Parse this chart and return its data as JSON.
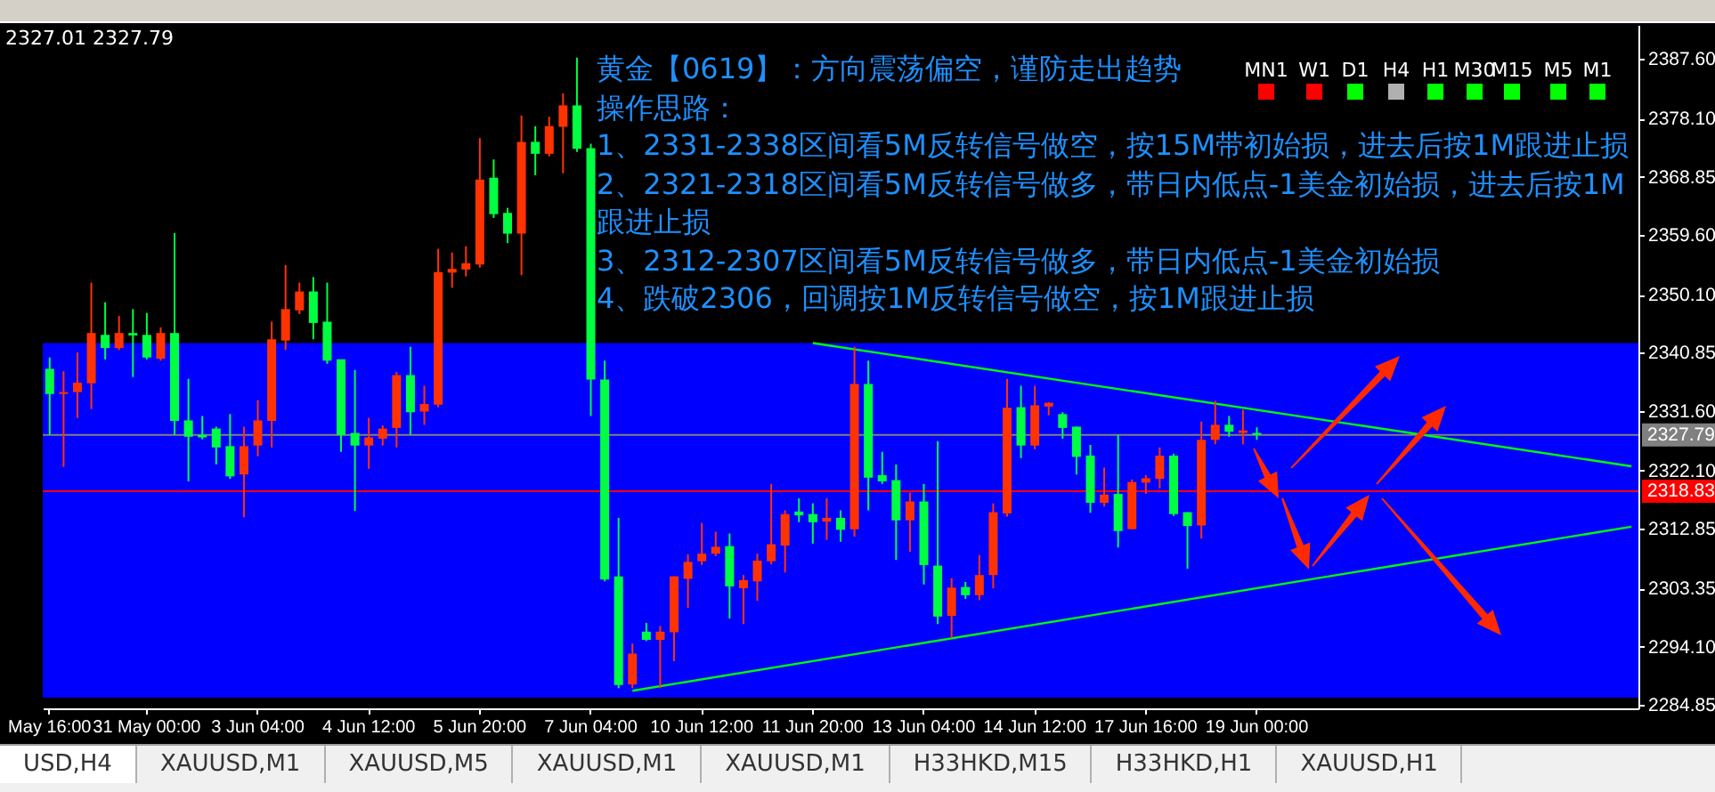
{
  "chart_data": {
    "type": "candlestick",
    "title": "黄金【0619】：方向震荡偏空，谨防走出趋势",
    "annotations": [
      "2327.01 2327.79",
      "操作思路：",
      "1、2331-2338区间看5M反转信号做空，按15M带初始损，进去后按1M跟进止损",
      "2、2321-2318区间看5M反转信号做多，带日内低点-1美金初始损，进去后按1M跟进止损",
      "3、2312-2307区间看5M反转信号做多，带日内低点-1美金初始损",
      "4、跌破2306，回调按1M反转信号做空，按1M跟进止损",
      "MN1",
      "W1",
      "D1",
      "H4",
      "H1",
      "M30",
      "M15",
      "M5",
      "M1",
      "USD,H4",
      "XAUUSD,M1",
      "XAUUSD,M5",
      "XAUUSD,M1",
      "XAUUSD,M1",
      "H33HKD,M15",
      "H33HKD,H1",
      "XAUUSD,H1"
    ],
    "categories": [
      "May 16:00",
      null,
      null,
      null,
      null,
      null,
      null,
      "31 May 00:00",
      null,
      null,
      null,
      null,
      null,
      null,
      null,
      "3 Jun 04:00",
      null,
      null,
      null,
      null,
      null,
      null,
      null,
      "4 Jun 12:00",
      null,
      null,
      null,
      null,
      null,
      null,
      null,
      "5 Jun 20:00",
      null,
      null,
      null,
      null,
      null,
      null,
      null,
      "7 Jun 04:00",
      null,
      null,
      null,
      null,
      null,
      null,
      null,
      "10 Jun 12:00",
      null,
      null,
      null,
      null,
      null,
      null,
      null,
      "11 Jun 20:00",
      null,
      null,
      null,
      null,
      null,
      null,
      null,
      "13 Jun 04:00",
      null,
      null,
      null,
      null,
      null,
      null,
      null,
      "14 Jun 12:00",
      null,
      null,
      null,
      null,
      null,
      null,
      null,
      "17 Jun 16:00",
      null,
      null,
      null,
      null,
      null,
      null,
      null,
      "19 Jun 00:00",
      null,
      null,
      null,
      null,
      null,
      null,
      null,
      null,
      null,
      null,
      null,
      null,
      null,
      null,
      null,
      null,
      null,
      null,
      null,
      null,
      null,
      null,
      null,
      null,
      null,
      null,
      null
    ],
    "ohlc": [
      [
        2338.3,
        2340.1,
        2327.8,
        2334.3
      ],
      [
        2334.3,
        2337.9,
        2322.7,
        2334.6
      ],
      [
        2334.6,
        2340.9,
        2330.5,
        2336.1
      ],
      [
        2336.0,
        2352.0,
        2331.9,
        2344.0
      ],
      [
        2343.7,
        2348.9,
        2339.8,
        2341.6
      ],
      [
        2341.6,
        2346.7,
        2341.3,
        2344.0
      ],
      [
        2344.0,
        2347.8,
        2337.0,
        2343.6
      ],
      [
        2343.7,
        2347.2,
        2339.8,
        2340.1
      ],
      [
        2339.9,
        2344.9,
        2339.6,
        2344.0
      ],
      [
        2344.0,
        2359.9,
        2327.8,
        2330.0
      ],
      [
        2330.1,
        2336.7,
        2320.4,
        2327.5
      ],
      [
        2327.8,
        2330.8,
        2327.1,
        2327.4
      ],
      [
        2328.8,
        2329.1,
        2323.1,
        2325.8
      ],
      [
        2326.0,
        2331.1,
        2320.8,
        2321.2
      ],
      [
        2321.5,
        2329.1,
        2314.7,
        2326.0
      ],
      [
        2326.1,
        2333.3,
        2324.4,
        2330.1
      ],
      [
        2330.0,
        2345.8,
        2325.8,
        2343.0
      ],
      [
        2342.8,
        2354.8,
        2341.3,
        2347.8
      ],
      [
        2347.6,
        2352.0,
        2347.0,
        2350.6
      ],
      [
        2350.6,
        2352.9,
        2343.0,
        2345.6
      ],
      [
        2345.8,
        2352.0,
        2339.1,
        2339.6
      ],
      [
        2339.8,
        2339.8,
        2325.1,
        2327.8
      ],
      [
        2328.1,
        2338.1,
        2315.7,
        2326.1
      ],
      [
        2326.1,
        2330.5,
        2322.4,
        2327.4
      ],
      [
        2327.2,
        2329.3,
        2326.1,
        2328.8
      ],
      [
        2328.9,
        2337.8,
        2325.8,
        2337.3
      ],
      [
        2337.3,
        2341.8,
        2327.8,
        2331.4
      ],
      [
        2331.5,
        2335.6,
        2329.4,
        2332.7
      ],
      [
        2332.6,
        2357.4,
        2332.2,
        2353.7
      ],
      [
        2353.6,
        2356.8,
        2351.2,
        2354.2
      ],
      [
        2354.1,
        2357.8,
        2353.0,
        2355.1
      ],
      [
        2354.9,
        2375.0,
        2354.4,
        2368.4
      ],
      [
        2368.7,
        2371.6,
        2362.3,
        2362.9
      ],
      [
        2363.1,
        2363.9,
        2358.3,
        2359.8
      ],
      [
        2359.8,
        2378.6,
        2353.2,
        2374.4
      ],
      [
        2374.4,
        2376.9,
        2369.1,
        2372.5
      ],
      [
        2372.5,
        2378.4,
        2372.1,
        2376.9
      ],
      [
        2376.8,
        2382.1,
        2369.4,
        2380.2
      ],
      [
        2380.2,
        2387.8,
        2372.8,
        2373.3
      ],
      [
        2373.4,
        2374.1,
        2330.8,
        2336.6
      ],
      [
        2336.6,
        2339.6,
        2304.5,
        2304.8
      ],
      [
        2305.3,
        2314.6,
        2287.5,
        2288.0
      ],
      [
        2288.1,
        2294.6,
        2287.5,
        2293.0
      ],
      [
        2296.5,
        2297.9,
        2295.0,
        2295.2
      ],
      [
        2295.2,
        2297.4,
        2287.5,
        2296.5
      ],
      [
        2296.4,
        2305.3,
        2291.8,
        2305.3
      ],
      [
        2304.9,
        2308.8,
        2300.3,
        2307.6
      ],
      [
        2307.7,
        2313.8,
        2307.1,
        2308.9
      ],
      [
        2308.9,
        2312.4,
        2308.5,
        2310.0
      ],
      [
        2310.1,
        2312.1,
        2298.6,
        2303.7
      ],
      [
        2303.4,
        2305.5,
        2297.7,
        2304.7
      ],
      [
        2304.5,
        2308.9,
        2301.4,
        2307.8
      ],
      [
        2307.7,
        2320.0,
        2307.2,
        2310.4
      ],
      [
        2310.2,
        2315.8,
        2305.9,
        2315.2
      ],
      [
        2315.6,
        2317.7,
        2313.9,
        2315.0
      ],
      [
        2315.2,
        2316.9,
        2310.5,
        2313.9
      ],
      [
        2314.0,
        2317.7,
        2311.1,
        2314.6
      ],
      [
        2314.6,
        2315.8,
        2310.8,
        2312.7
      ],
      [
        2312.8,
        2341.8,
        2311.6,
        2335.9
      ],
      [
        2335.9,
        2339.6,
        2315.8,
        2321.0
      ],
      [
        2321.4,
        2325.1,
        2320.0,
        2320.4
      ],
      [
        2320.6,
        2323.1,
        2307.9,
        2314.2
      ],
      [
        2314.2,
        2318.6,
        2309.2,
        2317.2
      ],
      [
        2317.2,
        2320.0,
        2304.0,
        2307.1
      ],
      [
        2307.0,
        2326.8,
        2297.7,
        2298.9
      ],
      [
        2299.0,
        2305.0,
        2295.5,
        2303.5
      ],
      [
        2303.6,
        2304.4,
        2301.7,
        2302.3
      ],
      [
        2302.3,
        2308.7,
        2301.5,
        2305.5
      ],
      [
        2305.5,
        2316.9,
        2303.4,
        2315.5
      ],
      [
        2315.3,
        2336.7,
        2314.8,
        2332.1
      ],
      [
        2332.2,
        2335.6,
        2324.1,
        2326.1
      ],
      [
        2326.1,
        2335.6,
        2325.5,
        2332.5
      ],
      [
        2332.3,
        2333.0,
        2330.9,
        2332.9
      ],
      [
        2331.1,
        2331.4,
        2327.2,
        2328.9
      ],
      [
        2329.1,
        2329.1,
        2321.5,
        2324.3
      ],
      [
        2324.5,
        2326.2,
        2315.4,
        2317.0
      ],
      [
        2317.0,
        2322.6,
        2316.4,
        2318.3
      ],
      [
        2318.4,
        2327.8,
        2309.9,
        2312.5
      ],
      [
        2312.8,
        2320.7,
        2312.8,
        2320.3
      ],
      [
        2320.2,
        2321.4,
        2318.4,
        2320.9
      ],
      [
        2320.8,
        2325.8,
        2319.3,
        2324.5
      ],
      [
        2324.5,
        2324.8,
        2314.9,
        2315.2
      ],
      [
        2315.5,
        2315.5,
        2306.5,
        2313.3
      ],
      [
        2313.4,
        2329.9,
        2311.3,
        2327.0
      ],
      [
        2327.0,
        2333.2,
        2326.3,
        2329.4
      ],
      [
        2329.4,
        2330.8,
        2327.5,
        2328.3
      ],
      [
        2328.1,
        2331.8,
        2326.3,
        2328.5
      ],
      [
        2328.1,
        2329.0,
        2327.01,
        2327.79
      ],
      null,
      null,
      null,
      null,
      null,
      null,
      null,
      null,
      null,
      null,
      null,
      null,
      null,
      null,
      null,
      null,
      null,
      null,
      null,
      null,
      null,
      null,
      null,
      null,
      null,
      null,
      null
    ],
    "colors": [
      "#00ff40",
      "#ff3300",
      "#ff3300",
      "#ff3300",
      "#00ff40",
      "#ff3300",
      "#00ff40",
      "#00ff40",
      "#ff3300",
      "#00ff40",
      "#00ff40",
      "#00ff40",
      "#00ff40",
      "#00ff40",
      "#ff3300",
      "#ff3300",
      "#ff3300",
      "#ff3300",
      "#ff3300",
      "#00ff40",
      "#00ff40",
      "#00ff40",
      "#00ff40",
      "#ff3300",
      "#ff3300",
      "#ff3300",
      "#00ff40",
      "#ff3300",
      "#ff3300",
      "#ff3300",
      "#ff3300",
      "#ff3300",
      "#00ff40",
      "#00ff40",
      "#ff3300",
      "#00ff40",
      "#ff3300",
      "#ff3300",
      "#00ff40",
      "#00ff40",
      "#00ff40",
      "#00ff40",
      "#ff3300",
      "#00ff40",
      "#ff3300",
      "#ff3300",
      "#ff3300",
      "#ff3300",
      "#ff3300",
      "#00ff40",
      "#ff3300",
      "#ff3300",
      "#ff3300",
      "#ff3300",
      "#00ff40",
      "#00ff40",
      "#ff3300",
      "#00ff40",
      "#ff3300",
      "#00ff40",
      "#00ff40",
      "#00ff40",
      "#ff3300",
      "#00ff40",
      "#00ff40",
      "#ff3300",
      "#00ff40",
      "#ff3300",
      "#ff3300",
      "#ff3300",
      "#00ff40",
      "#ff3300",
      "#ff3300",
      "#00ff40",
      "#00ff40",
      "#00ff40",
      "#ff3300",
      "#00ff40",
      "#ff3300",
      "#ff3300",
      "#ff3300",
      "#00ff40",
      "#00ff40",
      "#ff3300",
      "#ff3300",
      "#00ff40",
      "#ff3300",
      "#00ff40",
      null,
      null,
      null,
      null,
      null,
      null,
      null,
      null,
      null,
      null,
      null,
      null,
      null,
      null,
      null,
      null,
      null,
      null,
      null,
      null,
      null,
      null,
      null,
      null,
      null,
      null,
      null
    ],
    "series": [
      {
        "type": "line",
        "color": "#00ff00",
        "values": [
          null,
          null,
          null,
          null,
          null,
          null,
          null,
          null,
          null,
          null,
          null,
          null,
          null,
          null,
          null,
          null,
          null,
          null,
          null,
          null,
          null,
          null,
          null,
          null,
          null,
          null,
          null,
          null,
          null,
          null,
          null,
          null,
          null,
          null,
          null,
          null,
          null,
          null,
          null,
          null,
          null,
          null,
          null,
          null,
          null,
          null,
          null,
          null,
          null,
          null,
          null,
          null,
          null,
          null,
          null,
          2342.4,
          null,
          null,
          null,
          null,
          null,
          null,
          null,
          null,
          null,
          null,
          null,
          null,
          null,
          null,
          null,
          null,
          null,
          null,
          null,
          null,
          null,
          null,
          null,
          null,
          null,
          null,
          null,
          null,
          null,
          null,
          null,
          null,
          null,
          null,
          null,
          null,
          null,
          null,
          null,
          null,
          null,
          null,
          null,
          null,
          null,
          null,
          null,
          null,
          null,
          null,
          null,
          null,
          null,
          null,
          null,
          null,
          null,
          null,
          2322.8
        ]
      },
      {
        "type": "line",
        "color": "#00ff00",
        "values": [
          null,
          null,
          null,
          null,
          null,
          null,
          null,
          null,
          null,
          null,
          null,
          null,
          null,
          null,
          null,
          null,
          null,
          null,
          null,
          null,
          null,
          null,
          null,
          null,
          null,
          null,
          null,
          null,
          null,
          null,
          null,
          null,
          null,
          null,
          null,
          null,
          null,
          null,
          null,
          null,
          null,
          null,
          2287.1,
          null,
          null,
          null,
          null,
          null,
          null,
          null,
          null,
          null,
          null,
          null,
          null,
          null,
          null,
          null,
          null,
          null,
          null,
          null,
          null,
          null,
          null,
          null,
          null,
          null,
          null,
          null,
          null,
          null,
          null,
          null,
          null,
          null,
          null,
          null,
          null,
          null,
          null,
          null,
          null,
          null,
          null,
          null,
          null,
          null,
          null,
          null,
          null,
          null,
          null,
          null,
          null,
          null,
          null,
          null,
          null,
          null,
          null,
          null,
          null,
          null,
          null,
          null,
          null,
          null,
          null,
          null,
          null,
          null,
          null,
          null,
          2313.2
        ]
      }
    ],
    "ylim": [
      2284.3,
      2393.0
    ],
    "yticks": [
      {
        "value": 2284.85,
        "label": "2284.85"
      },
      {
        "value": 2294.1,
        "label": "2294.10"
      },
      {
        "value": 2303.35,
        "label": "2303.35"
      },
      {
        "value": 2312.85,
        "label": "2312.85"
      },
      {
        "value": 2322.1,
        "label": "2322.10"
      },
      {
        "value": 2331.6,
        "label": "2331.60"
      },
      {
        "value": 2340.85,
        "label": "2340.85"
      },
      {
        "value": 2350.1,
        "label": "2350.10"
      },
      {
        "value": 2359.6,
        "label": "2359.60"
      },
      {
        "value": 2368.85,
        "label": "2368.85"
      },
      {
        "value": 2378.1,
        "label": "2378.10"
      },
      {
        "value": 2387.6,
        "label": "2387.60"
      }
    ],
    "ref_lines": [
      {
        "axis": "y",
        "value": 2327.79,
        "label": "2327.79",
        "color": "#808080"
      },
      {
        "axis": "y",
        "value": 2318.83,
        "label": "2318.83",
        "color": "#ff0000"
      }
    ],
    "bands": [
      {
        "axis": "y",
        "from": 2286.0,
        "to": 2342.4,
        "color": "#0000ff"
      }
    ]
  }
}
